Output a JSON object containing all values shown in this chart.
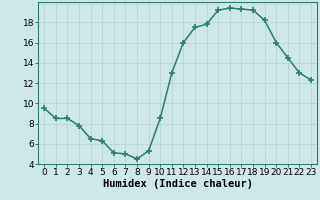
{
  "x": [
    0,
    1,
    2,
    3,
    4,
    5,
    6,
    7,
    8,
    9,
    10,
    11,
    12,
    13,
    14,
    15,
    16,
    17,
    18,
    19,
    20,
    21,
    22,
    23
  ],
  "y": [
    9.5,
    8.5,
    8.5,
    7.8,
    6.5,
    6.3,
    5.1,
    5.0,
    4.5,
    5.3,
    8.5,
    13.0,
    16.0,
    17.5,
    17.8,
    19.2,
    19.4,
    19.3,
    19.2,
    18.2,
    16.0,
    14.5,
    13.0,
    12.3
  ],
  "xlabel": "Humidex (Indice chaleur)",
  "ylim": [
    4,
    20
  ],
  "xlim": [
    -0.5,
    23.5
  ],
  "yticks": [
    4,
    6,
    8,
    10,
    12,
    14,
    16,
    18
  ],
  "xticks": [
    0,
    1,
    2,
    3,
    4,
    5,
    6,
    7,
    8,
    9,
    10,
    11,
    12,
    13,
    14,
    15,
    16,
    17,
    18,
    19,
    20,
    21,
    22,
    23
  ],
  "line_color": "#2e7d6e",
  "marker_color": "#2e7d6e",
  "bg_color": "#cce8e8",
  "grid_color": "#b8d4d4",
  "axis_color": "#2e7d6e",
  "font_color": "#000000",
  "xlabel_fontsize": 7.5,
  "tick_fontsize": 6.5
}
